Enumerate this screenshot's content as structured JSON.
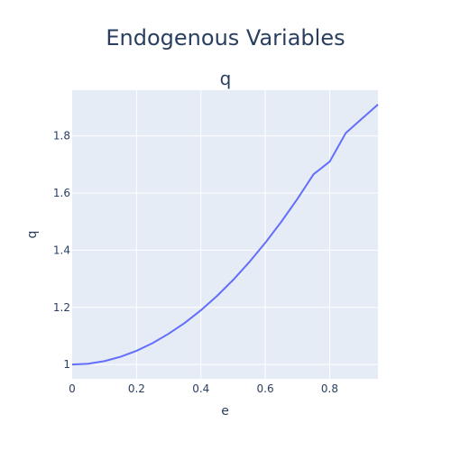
{
  "chart_data": {
    "type": "line",
    "title": "Endogenous Variables",
    "subtitle": "q",
    "xlabel": "e",
    "ylabel": "q",
    "xlim": [
      0,
      0.95
    ],
    "ylim": [
      0.95,
      1.96
    ],
    "x_ticks": [
      0,
      0.2,
      0.4,
      0.6,
      0.8
    ],
    "x_tick_labels": [
      "0",
      "0.2",
      "0.4",
      "0.6",
      "0.8"
    ],
    "y_ticks": [
      1.0,
      1.2,
      1.4,
      1.6,
      1.8
    ],
    "y_tick_labels": [
      "1",
      "1.2",
      "1.4",
      "1.6",
      "1.8"
    ],
    "grid": true,
    "colors": {
      "line": "#636efa",
      "plot_bg": "#e5ecf6",
      "grid": "#ffffff",
      "text": "#2a3f5f"
    },
    "series": [
      {
        "x": [
          0,
          0.05,
          0.1,
          0.15,
          0.2,
          0.25,
          0.3,
          0.35,
          0.4,
          0.45,
          0.5,
          0.55,
          0.6,
          0.65,
          0.7,
          0.75,
          0.8,
          0.85,
          0.9,
          0.95
        ],
        "values": [
          1.0,
          1.003,
          1.012,
          1.027,
          1.048,
          1.075,
          1.108,
          1.146,
          1.19,
          1.24,
          1.296,
          1.358,
          1.426,
          1.5,
          1.58,
          1.666,
          1.71,
          1.81,
          1.86,
          1.91
        ]
      }
    ]
  }
}
